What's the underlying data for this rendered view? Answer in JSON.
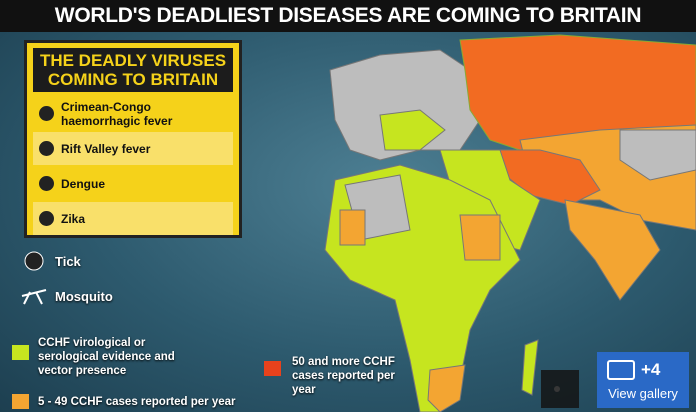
{
  "headline": "WORLD'S DEADLIEST DISEASES ARE COMING TO BRITAIN",
  "info_box": {
    "title": "THE DEADLY VIRUSES COMING TO BRITAIN",
    "diseases": [
      "Crimean-Congo haemorrhagic fever",
      "Rift Valley fever",
      "Dengue",
      "Zika"
    ]
  },
  "vectors": [
    "Tick",
    "Mosquito"
  ],
  "map_legend": [
    "CCHF virological or serological evidence and vector presence",
    "5 - 49 CCHF cases reported per year",
    "50 and more CCHF cases reported per year"
  ],
  "gallery": {
    "count": "+4",
    "label": "View gallery"
  }
}
